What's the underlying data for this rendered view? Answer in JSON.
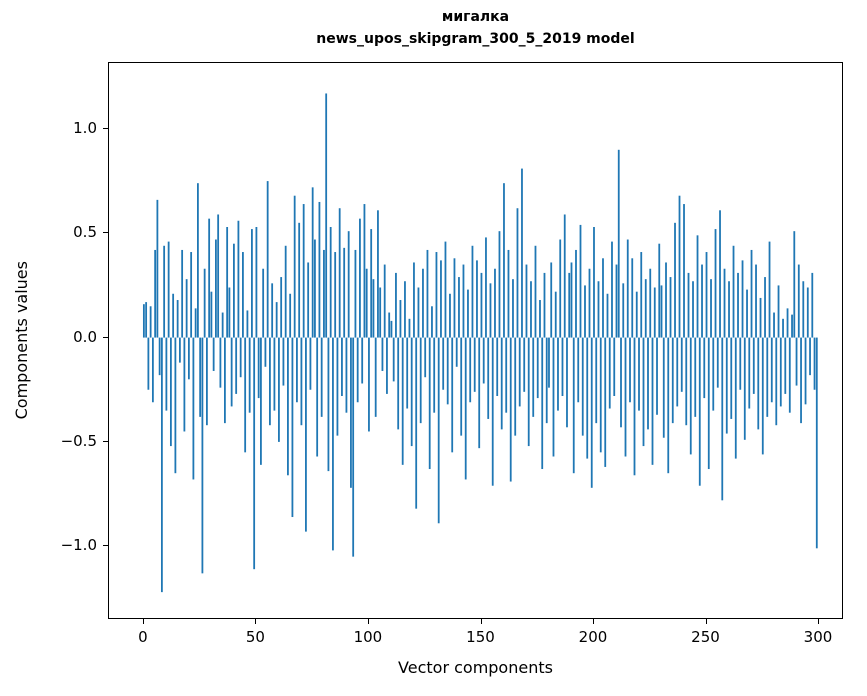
{
  "background": "#ffffff",
  "chart_data": {
    "type": "bar",
    "title": "мигалка",
    "subtitle": "news_upos_skipgram_300_5_2019 model",
    "xlabel": "Vector components",
    "ylabel": "Components values",
    "xlim": [
      -15.5,
      310.2
    ],
    "ylim": [
      -1.344,
      1.316
    ],
    "x_ticks": [
      0,
      50,
      100,
      150,
      200,
      250,
      300
    ],
    "x_tick_labels": [
      "0",
      "50",
      "100",
      "150",
      "200",
      "250",
      "300"
    ],
    "y_ticks": [
      -1.0,
      -0.5,
      0.0,
      0.5,
      1.0
    ],
    "y_tick_labels": [
      "−1.0",
      "−0.5",
      "0.0",
      "0.5",
      "1.0"
    ],
    "bar_color": "#1f77b4",
    "grid": false,
    "legend": "none",
    "values": [
      0.16,
      0.17,
      -0.25,
      0.15,
      -0.31,
      0.42,
      0.66,
      -0.18,
      -1.22,
      0.44,
      -0.35,
      0.46,
      -0.52,
      0.21,
      -0.65,
      0.18,
      -0.12,
      0.42,
      -0.45,
      0.28,
      -0.2,
      0.41,
      -0.68,
      0.14,
      0.74,
      -0.38,
      -1.13,
      0.33,
      -0.42,
      0.57,
      0.22,
      -0.16,
      0.47,
      0.59,
      -0.24,
      0.12,
      -0.41,
      0.53,
      0.24,
      -0.33,
      0.45,
      -0.27,
      0.56,
      -0.19,
      0.41,
      -0.55,
      0.13,
      -0.36,
      0.52,
      -1.11,
      0.53,
      -0.29,
      -0.61,
      0.33,
      -0.14,
      0.75,
      -0.42,
      0.26,
      -0.35,
      0.17,
      -0.5,
      0.29,
      -0.23,
      0.44,
      -0.66,
      0.21,
      -0.86,
      0.68,
      -0.31,
      0.55,
      -0.42,
      0.64,
      -0.93,
      0.36,
      -0.25,
      0.72,
      0.47,
      -0.57,
      0.65,
      -0.38,
      0.42,
      1.17,
      -0.64,
      0.53,
      -1.02,
      0.41,
      -0.47,
      0.62,
      -0.28,
      0.43,
      -0.36,
      0.51,
      -0.72,
      -1.05,
      0.42,
      -0.31,
      0.57,
      -0.22,
      0.64,
      0.33,
      -0.45,
      0.52,
      0.28,
      -0.38,
      0.61,
      0.24,
      -0.16,
      0.35,
      -0.27,
      0.12,
      0.08,
      -0.21,
      0.31,
      -0.44,
      0.18,
      -0.61,
      0.27,
      -0.34,
      0.09,
      -0.52,
      0.36,
      -0.82,
      0.24,
      -0.41,
      0.33,
      -0.19,
      0.42,
      -0.63,
      0.15,
      -0.36,
      0.41,
      -0.89,
      0.37,
      -0.25,
      0.46,
      -0.32,
      0.21,
      -0.55,
      0.38,
      -0.14,
      0.29,
      -0.47,
      0.35,
      -0.68,
      0.23,
      -0.31,
      0.44,
      -0.26,
      0.37,
      -0.53,
      0.31,
      -0.22,
      0.48,
      -0.39,
      0.26,
      -0.71,
      0.33,
      -0.28,
      0.51,
      -0.44,
      0.74,
      -0.36,
      0.42,
      -0.69,
      0.28,
      -0.47,
      0.62,
      -0.33,
      0.81,
      -0.26,
      0.35,
      -0.52,
      0.27,
      -0.38,
      0.44,
      -0.29,
      0.18,
      -0.63,
      0.31,
      -0.41,
      -0.24,
      0.36,
      -0.57,
      0.22,
      -0.35,
      0.47,
      -0.28,
      0.59,
      -0.43,
      0.31,
      0.36,
      -0.65,
      0.42,
      -0.31,
      0.54,
      -0.47,
      0.25,
      -0.58,
      0.33,
      -0.72,
      0.53,
      -0.41,
      0.27,
      -0.55,
      0.38,
      -0.62,
      0.21,
      -0.34,
      0.46,
      -0.28,
      0.35,
      0.9,
      -0.43,
      0.26,
      -0.57,
      0.47,
      -0.31,
      0.38,
      -0.66,
      0.22,
      -0.35,
      0.41,
      -0.52,
      0.28,
      -0.44,
      0.33,
      -0.61,
      0.24,
      -0.37,
      0.45,
      0.25,
      -0.48,
      0.36,
      -0.65,
      0.29,
      -0.41,
      0.55,
      -0.33,
      0.68,
      -0.26,
      0.64,
      -0.42,
      0.31,
      -0.56,
      0.27,
      -0.38,
      0.49,
      -0.71,
      0.35,
      -0.29,
      0.41,
      -0.63,
      0.28,
      -0.35,
      0.52,
      -0.24,
      0.61,
      -0.78,
      0.33,
      -0.46,
      0.27,
      -0.39,
      0.44,
      -0.58,
      0.31,
      -0.25,
      0.37,
      -0.49,
      0.23,
      -0.34,
      0.42,
      -0.27,
      0.35,
      -0.44,
      0.19,
      -0.56,
      0.29,
      -0.38,
      0.46,
      -0.31,
      0.12,
      -0.42,
      0.25,
      -0.33,
      0.09,
      -0.27,
      0.14,
      -0.36,
      0.11,
      0.51,
      -0.23,
      0.35,
      -0.41,
      0.27,
      -0.32,
      0.24,
      -0.18,
      0.31,
      -0.25,
      -1.01
    ]
  }
}
